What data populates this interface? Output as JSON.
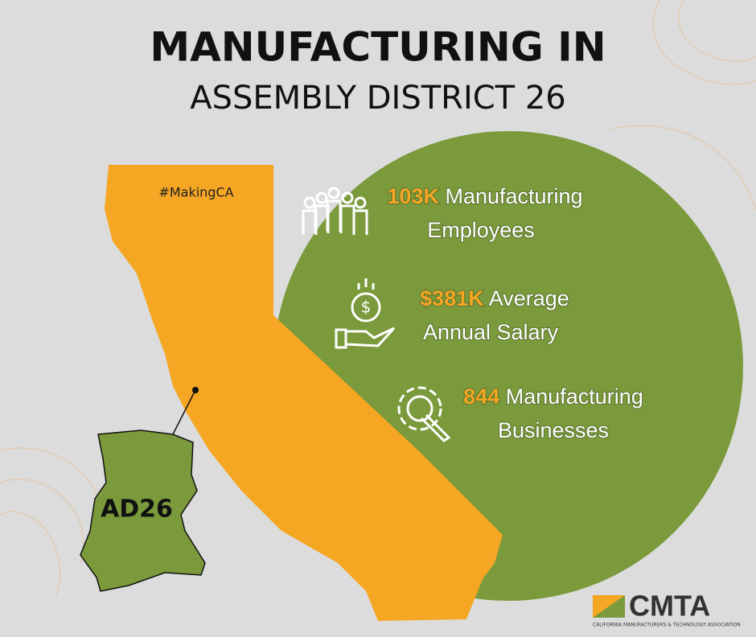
{
  "header": {
    "title_line1": "MANUFACTURING IN",
    "title_line2": "ASSEMBLY DISTRICT 26"
  },
  "hashtag": "#MakingCA",
  "stats": [
    {
      "value": "103K",
      "label_line1": "Manufacturing",
      "label_line2": "Employees"
    },
    {
      "value": "$381K",
      "label_line1": "Average",
      "label_line2": "Annual Salary"
    },
    {
      "value": "844",
      "label_line1": "Manufacturing",
      "label_line2": "Businesses"
    }
  ],
  "district_label": "AD26",
  "logo": {
    "name": "CMTA",
    "tagline": "CALIFORNIA MANUFACTURERS & TECHNOLOGY ASSOCIATION"
  }
}
